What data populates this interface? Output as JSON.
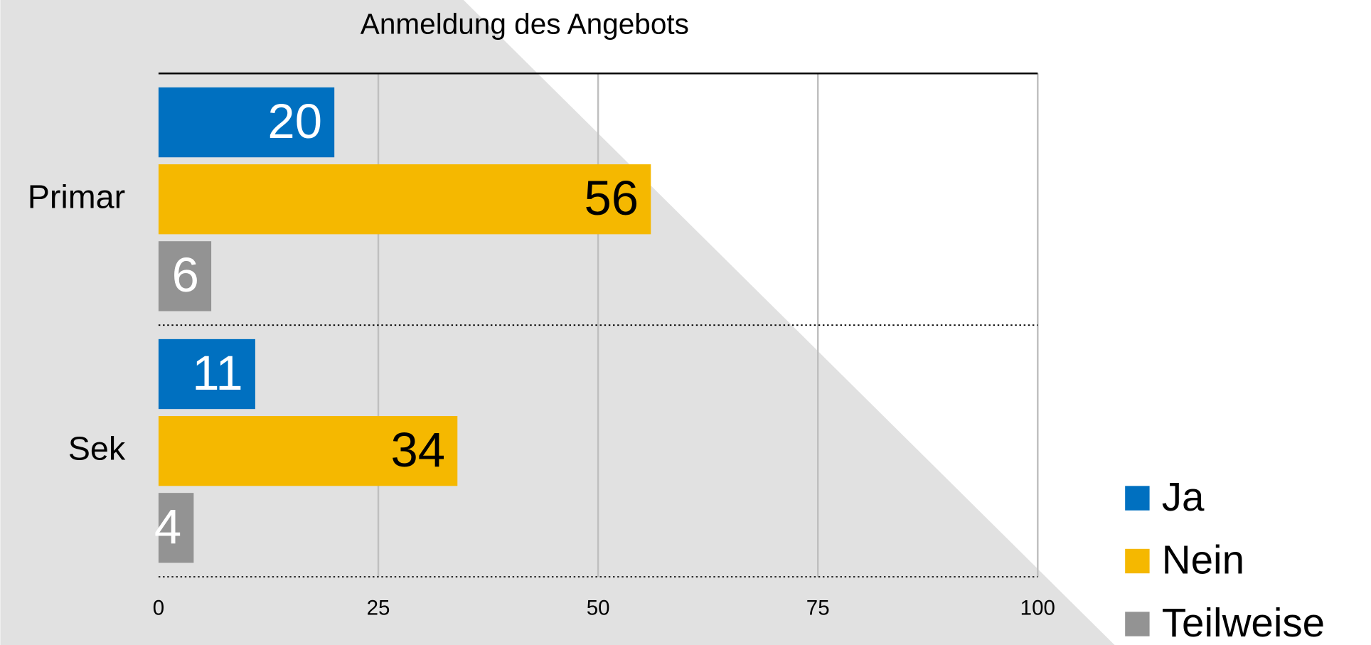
{
  "chart_data": {
    "type": "bar",
    "orientation": "horizontal",
    "title": "Anmeldung des Angebots",
    "categories": [
      "Primar",
      "Sek"
    ],
    "series": [
      {
        "name": "Ja",
        "color": "#0070c0",
        "values": [
          20,
          11
        ]
      },
      {
        "name": "Nein",
        "color": "#f5b800",
        "values": [
          56,
          34
        ]
      },
      {
        "name": "Teilweise",
        "color": "#939393",
        "values": [
          6,
          4
        ]
      }
    ],
    "xlim": [
      0,
      100
    ],
    "xticks": [
      0,
      25,
      50,
      75,
      100
    ],
    "grid": true,
    "legend": "lower right"
  }
}
